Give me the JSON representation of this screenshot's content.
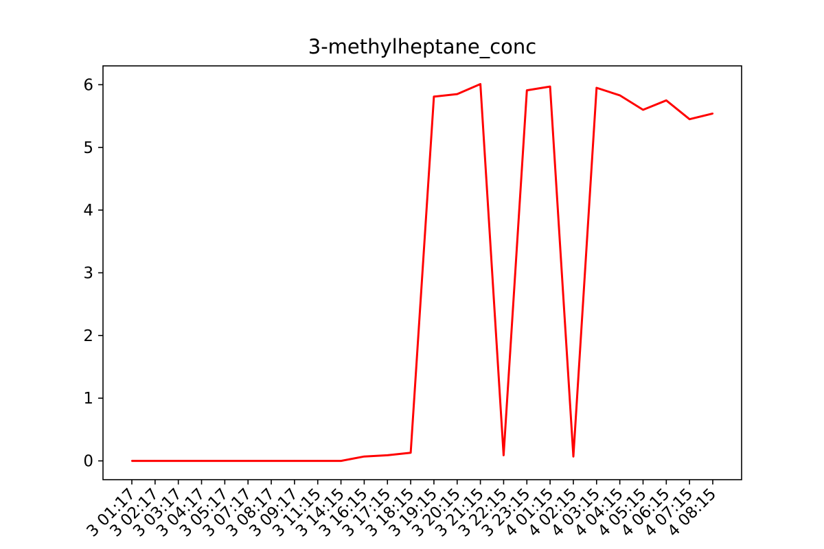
{
  "chart_data": {
    "type": "line",
    "title": "3-methylheptane_conc",
    "xlabel": "",
    "ylabel": "",
    "x": [
      "3 01:17",
      "3 02:17",
      "3 03:17",
      "3 04:17",
      "3 05:17",
      "3 07:17",
      "3 08:17",
      "3 09:17",
      "3 11:15",
      "3 14:15",
      "3 16:15",
      "3 17:15",
      "3 18:15",
      "3 19:15",
      "3 20:15",
      "3 21:15",
      "3 22:15",
      "3 23:15",
      "4 01:15",
      "4 02:15",
      "4 03:15",
      "4 04:15",
      "4 05:15",
      "4 06:15",
      "4 07:15",
      "4 08:15"
    ],
    "series": [
      {
        "color": "#ff0000",
        "values": [
          0.0,
          0.0,
          0.0,
          0.0,
          0.0,
          0.0,
          0.0,
          0.0,
          0.0,
          0.0,
          0.07,
          0.09,
          0.13,
          5.81,
          5.85,
          6.01,
          0.09,
          5.91,
          5.97,
          0.07,
          5.95,
          5.83,
          5.6,
          5.75,
          5.45,
          5.54
        ]
      }
    ],
    "yticks": [
      0,
      1,
      2,
      3,
      4,
      5,
      6
    ],
    "ylim": [
      -0.3,
      6.3
    ],
    "grid": false,
    "line_color": "#ff0000"
  }
}
